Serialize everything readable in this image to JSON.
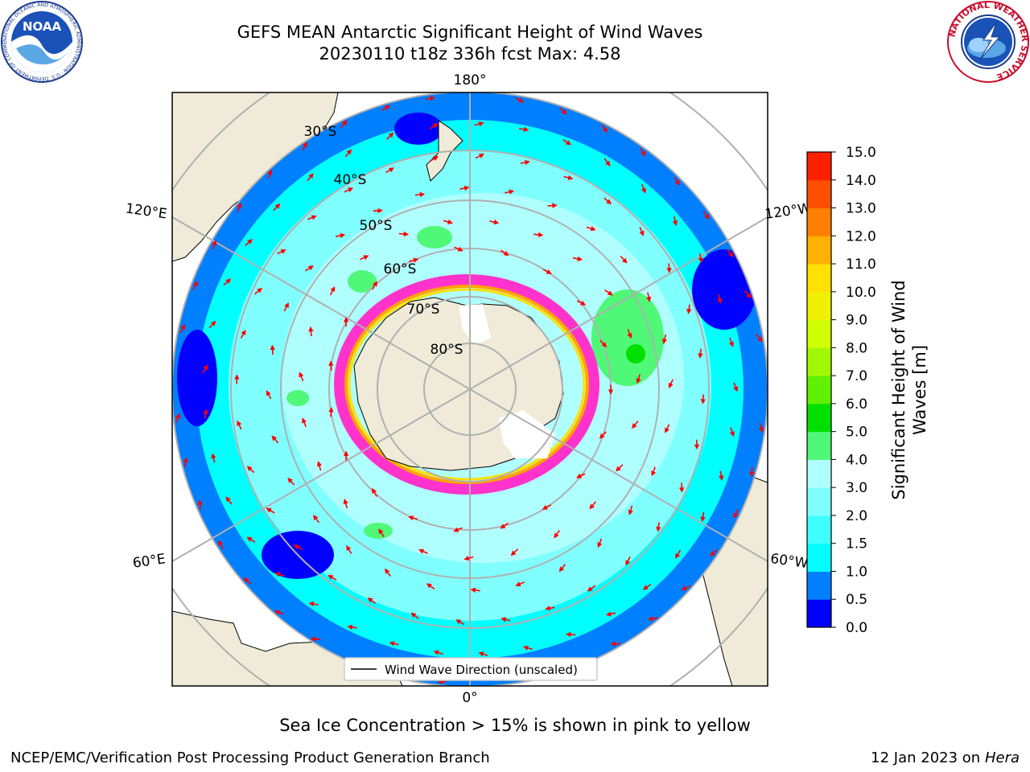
{
  "title": {
    "line1": "GEFS MEAN Antarctic Significant Height of Wind Waves",
    "line2": "20230110 t18z 336h fcst   Max: 4.58"
  },
  "logos": {
    "left": "NOAA",
    "left_ring_text": "NATIONAL OCEANIC AND ATMOSPHERIC ADMINISTRATION · U.S. DEPARTMENT OF COMMERCE",
    "right_ring_text": "NATIONAL WEATHER SERVICE"
  },
  "map": {
    "projection": "south-polar-stereographic",
    "longitude_labels": [
      "180°",
      "120°E",
      "120°W",
      "60°E",
      "60°W",
      "0°"
    ],
    "latitude_labels": [
      "30°S",
      "40°S",
      "50°S",
      "60°S",
      "70°S",
      "80°S"
    ],
    "legend_label": "Wind Wave Direction (unscaled)",
    "colors": {
      "land": "#efebd8",
      "ice": "#ffffff",
      "ice_edge": [
        "#ff33cc",
        "#ffa500",
        "#ffd700"
      ],
      "arrow": "#ff0000",
      "grid": "#b0b0b0"
    }
  },
  "colorbar": {
    "label": "Significant Height of Wind Waves [m]",
    "label_line1": "Significant Height of Wind",
    "label_line2": "Waves [m]",
    "ticks": [
      "0.0",
      "0.5",
      "1.0",
      "1.5",
      "2.0",
      "3.0",
      "4.0",
      "5.0",
      "6.0",
      "7.0",
      "8.0",
      "9.0",
      "10.0",
      "11.0",
      "12.0",
      "13.0",
      "14.0",
      "15.0"
    ],
    "colors": [
      "#0000ff",
      "#007fff",
      "#00ffff",
      "#40ffff",
      "#80ffff",
      "#b0ffff",
      "#50f878",
      "#00e000",
      "#60f000",
      "#a0f800",
      "#d0ff00",
      "#f0f000",
      "#ffe000",
      "#ffb000",
      "#ff8000",
      "#ff5000",
      "#ff2000",
      "#ff0000"
    ]
  },
  "caption": "Sea Ice Concentration > 15% is shown in pink to yellow",
  "footer": {
    "left": "NCEP/EMC/Verification Post Processing Product Generation Branch",
    "right_prefix": "12 Jan 2023 on ",
    "right_host": "Hera"
  }
}
